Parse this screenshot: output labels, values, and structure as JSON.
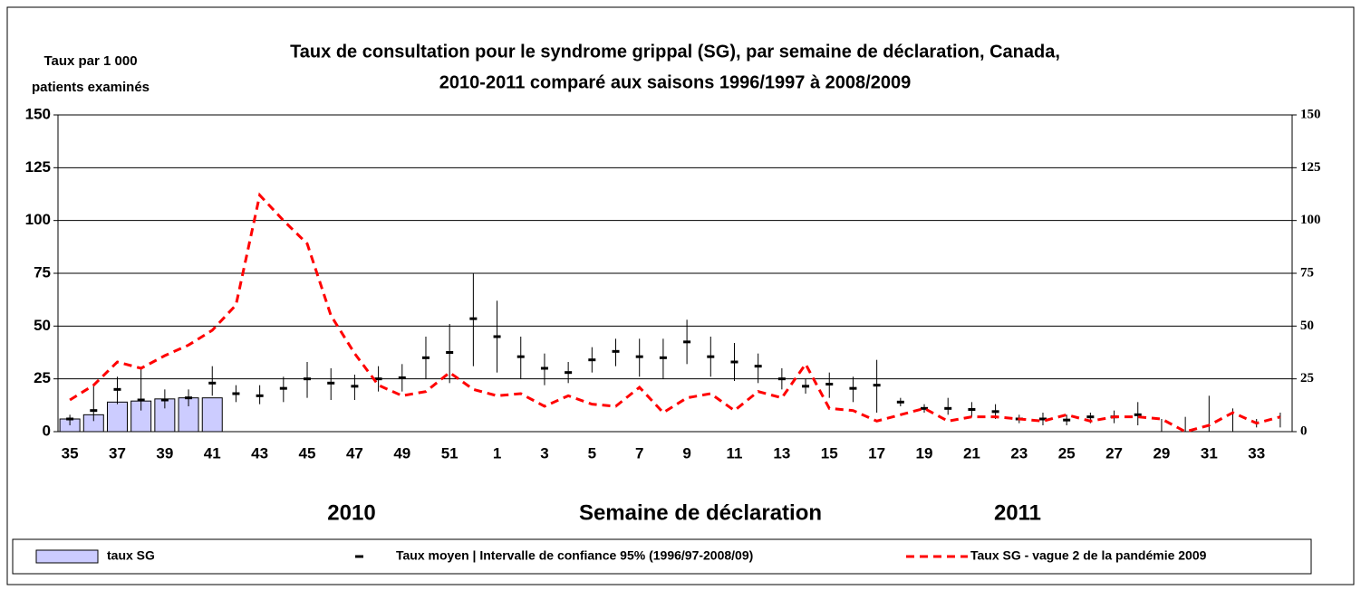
{
  "chart_data": {
    "type": "combo",
    "title": [
      "Taux de consultation pour le syndrome grippal (SG), par semaine de déclaration, Canada,",
      "2010-2011 comparé aux saisons 1996/1997 à 2008/2009"
    ],
    "ylabel": [
      "Taux par 1 000",
      "patients examinés"
    ],
    "xlabel": "Semaine de déclaration",
    "year_labels": [
      "2010",
      "2011"
    ],
    "categories": [
      35,
      null,
      37,
      null,
      39,
      null,
      41,
      null,
      43,
      null,
      45,
      null,
      47,
      null,
      49,
      null,
      51,
      null,
      1,
      null,
      3,
      null,
      5,
      null,
      7,
      null,
      9,
      null,
      11,
      null,
      13,
      null,
      15,
      null,
      17,
      null,
      19,
      null,
      21,
      null,
      23,
      null,
      25,
      null,
      27,
      null,
      29,
      null,
      31,
      null,
      33,
      null
    ],
    "ylim": [
      0,
      150
    ],
    "yticks": [
      0,
      25,
      50,
      75,
      100,
      125,
      150
    ],
    "y2lim": [
      0,
      150
    ],
    "y2ticks": [
      0,
      25,
      50,
      75,
      100,
      125,
      150
    ],
    "grid": true,
    "legend": "bottom",
    "series": [
      {
        "name": "taux SG",
        "type": "bar",
        "color": "#ccccff",
        "values": [
          6,
          8,
          14,
          14.5,
          15.5,
          16,
          16,
          null,
          null,
          null,
          null,
          null,
          null,
          null,
          null,
          null,
          null,
          null,
          null,
          null,
          null,
          null,
          null,
          null,
          null,
          null,
          null,
          null,
          null,
          null,
          null,
          null,
          null,
          null,
          null,
          null,
          null,
          null,
          null,
          null,
          null,
          null,
          null,
          null,
          null,
          null,
          null,
          null,
          null,
          null,
          null,
          null
        ]
      },
      {
        "name": "Taux moyen | Intervalle de confiance 95% (1996/97-2008/09)",
        "type": "errorbar",
        "color": "#000000",
        "values": [
          6,
          10,
          20,
          15,
          15,
          16,
          23,
          18,
          17,
          20.5,
          25,
          23,
          21.5,
          25,
          25.5,
          35,
          37.5,
          53.5,
          45,
          35.5,
          30,
          28,
          34,
          38,
          35.5,
          35,
          42.5,
          35.5,
          33,
          31,
          25,
          21.5,
          22.5,
          20.5,
          22,
          14,
          11,
          11,
          10.5,
          9.5,
          6,
          6,
          5.5,
          7,
          7,
          8,
          null,
          null,
          null,
          null,
          null,
          null
        ],
        "ci_low": [
          3,
          5,
          13,
          10,
          11,
          12,
          17,
          14,
          13,
          14,
          16,
          15,
          15,
          19,
          19,
          25,
          23,
          31,
          28,
          25,
          22,
          23,
          28,
          31,
          26,
          25,
          32,
          26,
          24,
          23,
          20,
          18,
          16,
          14,
          9,
          12,
          9,
          8,
          7,
          6,
          4,
          3,
          3,
          4,
          4,
          3,
          0,
          0,
          0,
          0,
          2,
          2
        ],
        "ci_high": [
          8,
          22,
          26,
          30,
          20,
          20,
          31,
          22,
          22,
          26,
          33,
          30,
          27,
          31,
          32,
          45,
          51,
          75,
          62,
          45,
          37,
          33,
          40,
          44,
          44,
          44,
          53,
          45,
          42,
          37,
          30,
          25,
          28,
          26,
          34,
          16,
          13,
          16,
          14,
          13,
          8,
          9,
          8,
          9,
          10,
          14,
          6,
          7,
          17,
          11,
          6,
          9
        ]
      },
      {
        "name": "Taux SG - vague 2 de la pandémie 2009",
        "type": "line",
        "color": "#ff0000",
        "dashed": true,
        "values": [
          15,
          22,
          33,
          30,
          36,
          41,
          48,
          60,
          112,
          100,
          89,
          55,
          37,
          22,
          17,
          19,
          28,
          20,
          17,
          18,
          12,
          17,
          13,
          12,
          21,
          9,
          16,
          18,
          10,
          19,
          16,
          32,
          11,
          10,
          5,
          8,
          11,
          5,
          7,
          7,
          6,
          5,
          8,
          5,
          7,
          7,
          6,
          0,
          3,
          9,
          4,
          7
        ]
      }
    ]
  }
}
